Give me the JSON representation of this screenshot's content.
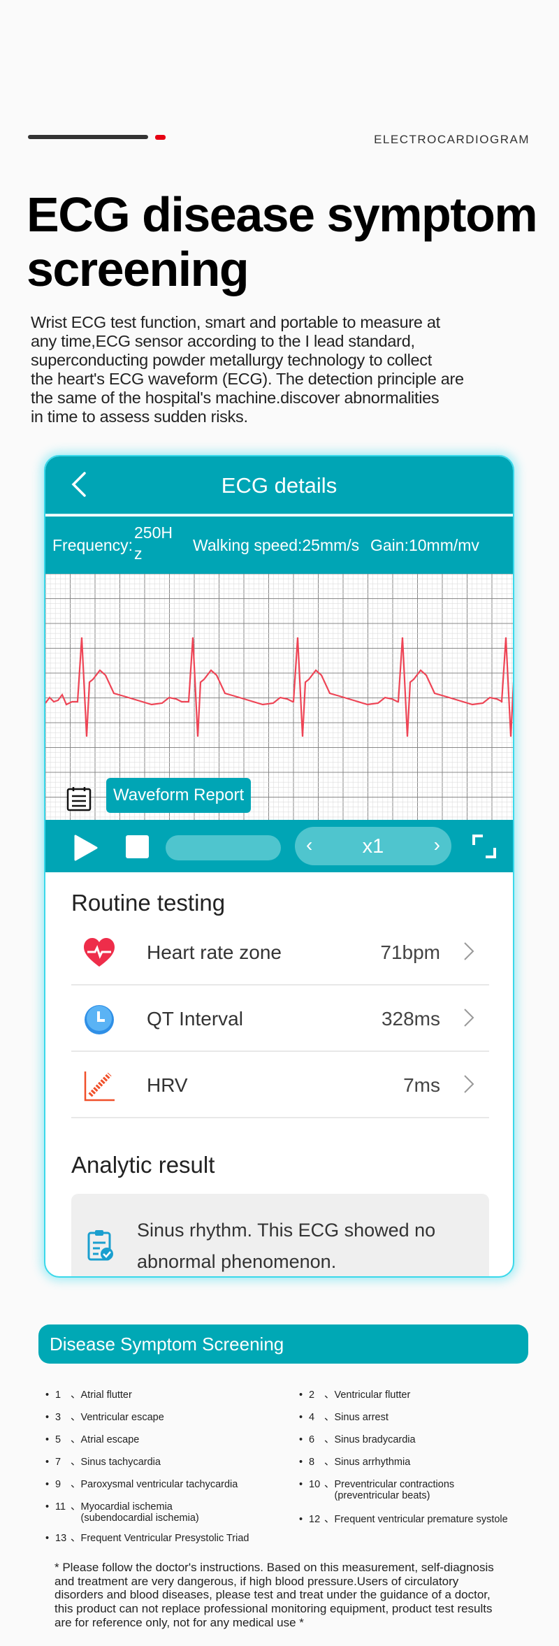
{
  "eyebrow": "ELECTROCARDIOGRAM",
  "title_lines": [
    "ECG disease symptom",
    "screening"
  ],
  "intro_lines": [
    "Wrist ECG test function, smart and portable to measure at",
    "any time,ECG sensor according to the I lead standard,",
    "superconducting powder metallurgy technology to collect",
    "the heart's ECG waveform (ECG). The detection principle are",
    "the same of the hospital's machine.discover abnormalities",
    "in time to assess sudden risks."
  ],
  "app": {
    "header_title": "ECG details",
    "frequency_label": "Frequency:",
    "frequency_value_a": "250H",
    "frequency_value_b": "z",
    "walking_speed": "Walking speed:25mm/s",
    "gain": "Gain:10mm/mv",
    "report_button": "Waveform Report",
    "speed_value": "x1",
    "routine_title": "Routine testing",
    "rows": [
      {
        "icon": "heart-rate-icon",
        "label": "Heart rate zone",
        "value": "71bpm"
      },
      {
        "icon": "clock-icon",
        "label": "QT Interval",
        "value": "328ms"
      },
      {
        "icon": "hrv-chart-icon",
        "label": "HRV",
        "value": "7ms"
      }
    ],
    "analytic_title": "Analytic result",
    "result_lines": [
      "Sinus rhythm. This ECG showed no",
      "abnormal phenomenon."
    ],
    "colors": {
      "primary": "#00a5b5",
      "waveform": "#ee4455"
    }
  },
  "screening": {
    "title": "Disease Symptom Screening",
    "items": [
      {
        "num": "1",
        "sep": "、",
        "text": "Atrial flutter"
      },
      {
        "num": "2",
        "sep": "、",
        "text": "Ventricular flutter"
      },
      {
        "num": "3",
        "sep": "、",
        "text": "Ventricular escape"
      },
      {
        "num": "4",
        "sep": "、",
        "text": "Sinus arrest"
      },
      {
        "num": "5",
        "sep": "、",
        "text": "Atrial escape"
      },
      {
        "num": "6",
        "sep": "、",
        "text": "Sinus bradycardia"
      },
      {
        "num": "7",
        "sep": "、",
        "text": "Sinus tachycardia"
      },
      {
        "num": "8",
        "sep": "、",
        "text": "Sinus arrhythmia"
      },
      {
        "num": "9",
        "sep": "、",
        "text": "Paroxysmal ventricular tachycardia"
      },
      {
        "num": "10",
        "sep": "、",
        "text": "Preventricular contractions",
        "text2": "(preventricular beats)"
      },
      {
        "num": "11",
        "sep": "、",
        "text": "Myocardial ischemia",
        "text2": "(subendocardial ischemia)"
      },
      {
        "num": "12",
        "sep": "、",
        "text": "Frequent ventricular premature systole"
      },
      {
        "num": "13",
        "sep": "、",
        "text": "Frequent Ventricular Presystolic Triad"
      }
    ],
    "note_lines": [
      "* Please follow the doctor's instructions. Based on this measurement, self-diagnosis",
      "and treatment are very dangerous, if high blood pressure.Users of circulatory",
      "disorders and blood diseases, please test and treat under the guidance of a doctor,",
      "this product can not replace professional monitoring equipment, product test results",
      "are for reference only, not for any medical use *"
    ]
  }
}
